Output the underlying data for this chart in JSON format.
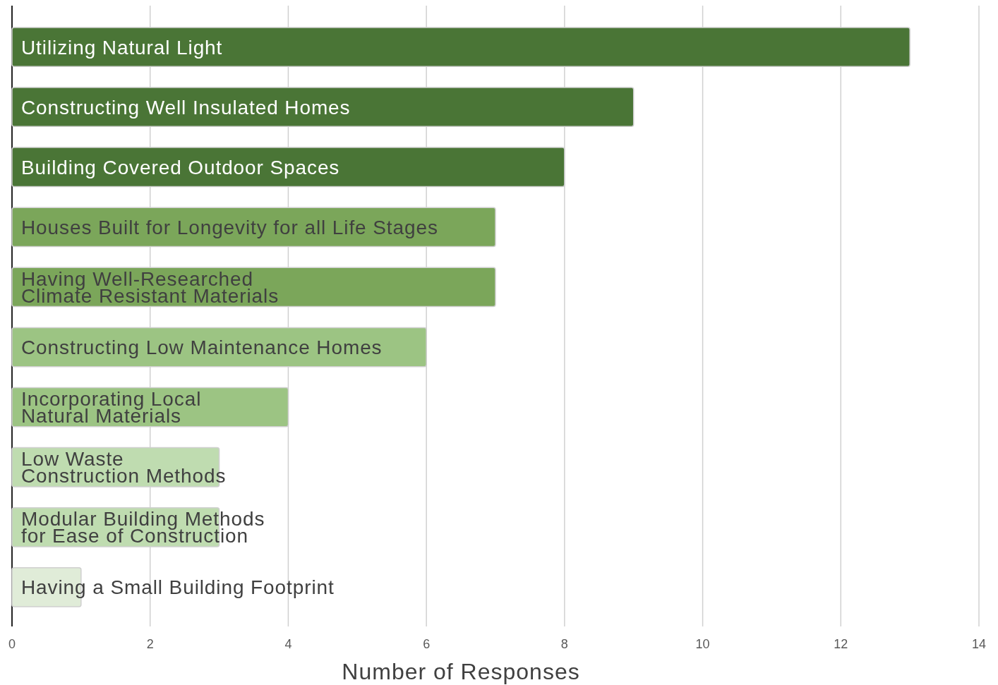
{
  "chart_data": {
    "type": "bar",
    "orientation": "horizontal",
    "categories": [
      "Utilizing Natural Light",
      "Constructing Well Insulated Homes",
      "Building Covered Outdoor Spaces",
      "Houses Built for Longevity for all Life Stages",
      "Having Well-Researched\nClimate Resistant Materials",
      "Constructing Low Maintenance Homes",
      "Incorporating Local\nNatural Materials",
      "Low Waste\nConstruction Methods",
      "Modular Building Methods\nfor Ease of Construction",
      "Having a Small Building Footprint"
    ],
    "values": [
      13,
      9,
      8,
      7,
      7,
      6,
      4,
      3,
      3,
      1
    ],
    "colors": [
      "#4a7536",
      "#4a7536",
      "#4a7536",
      "#7ba65a",
      "#7ba65a",
      "#9cc483",
      "#9cc483",
      "#bfdcb0",
      "#bfdcb0",
      "#e0ecd8"
    ],
    "xlabel": "Number of Responses",
    "xlim": [
      0,
      14
    ],
    "xticks": [
      0,
      2,
      4,
      6,
      8,
      10,
      12,
      14
    ],
    "grid": "x"
  }
}
